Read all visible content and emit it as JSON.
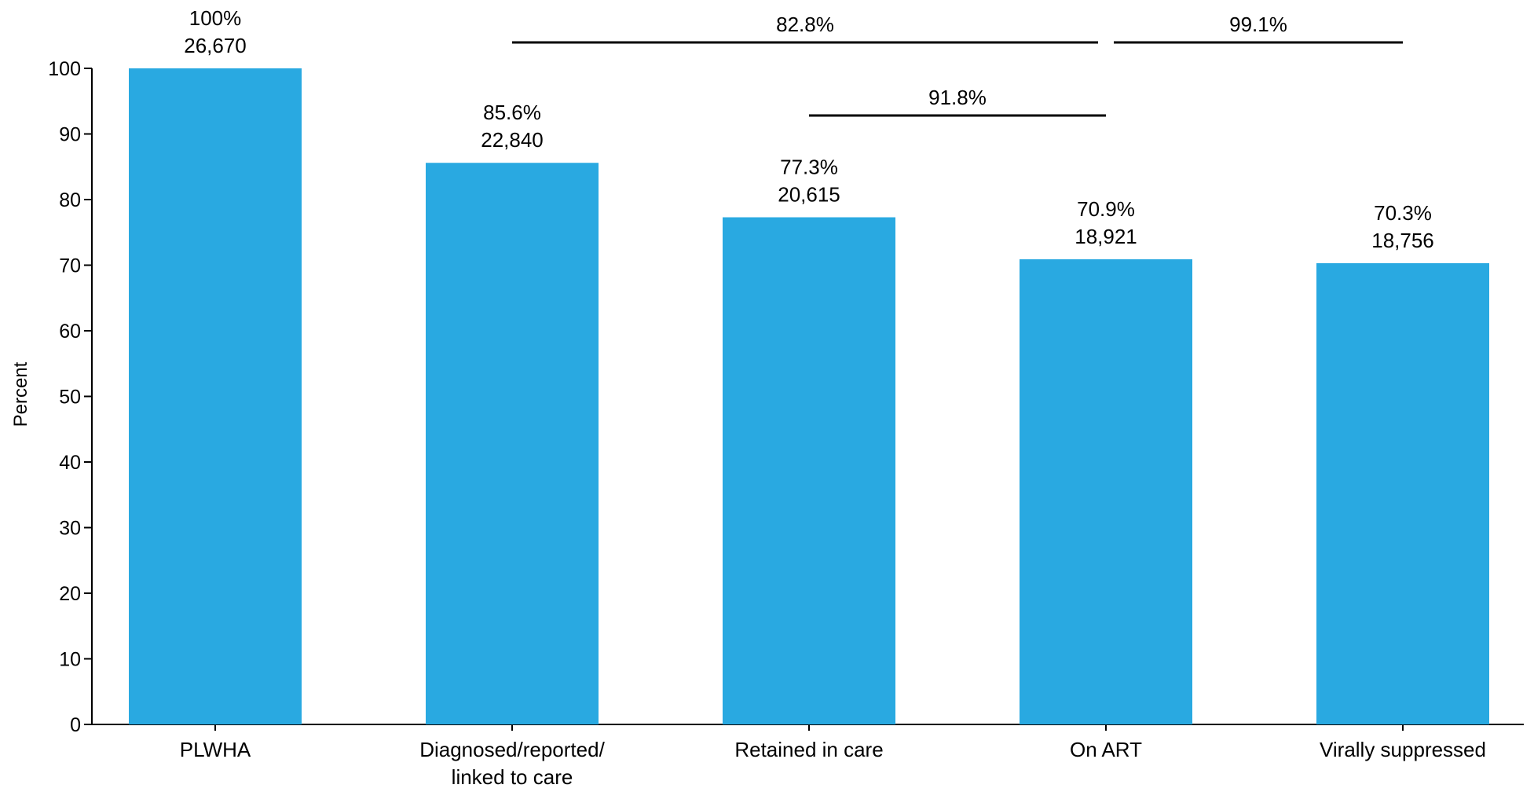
{
  "chart_data": {
    "type": "bar",
    "title": "",
    "xlabel": "",
    "ylabel": "Percent",
    "ylim": [
      0,
      100
    ],
    "yticks": [
      0,
      10,
      20,
      30,
      40,
      50,
      60,
      70,
      80,
      90,
      100
    ],
    "grid": false,
    "bar_color": "#29a9e1",
    "categories": [
      [
        "PLWHA"
      ],
      [
        "Diagnosed/reported/",
        "linked to care"
      ],
      [
        "Retained in care"
      ],
      [
        "On ART"
      ],
      [
        "Virally suppressed"
      ]
    ],
    "values": [
      100,
      85.6,
      77.3,
      70.9,
      70.3
    ],
    "percent_labels": [
      "100%",
      "85.6%",
      "77.3%",
      "70.9%",
      "70.3%"
    ],
    "count_labels": [
      "26,670",
      "22,840",
      "20,615",
      "18,921",
      "18,756"
    ],
    "annotations": [
      {
        "label": "82.8%",
        "from_category": 1,
        "to_category": 3,
        "level": 1
      },
      {
        "label": "99.1%",
        "from_category": 3,
        "to_category": 4,
        "level": 1
      },
      {
        "label": "91.8%",
        "from_category": 2,
        "to_category": 3,
        "level": 0
      }
    ]
  }
}
